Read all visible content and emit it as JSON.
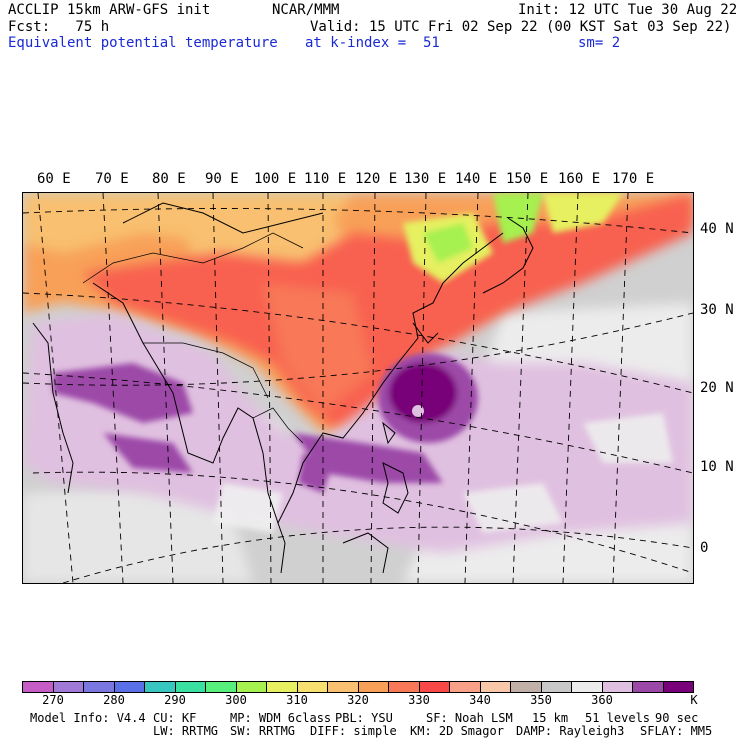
{
  "header": {
    "line1_left": "ACCLIP 15km ARW-GFS init",
    "line1_mid": "NCAR/MMM",
    "line1_right": "Init: 12 UTC Tue 30 Aug 22",
    "line2_left": "Fcst:   75 h",
    "line2_right": "Valid: 15 UTC Fri 02 Sep 22 (00 KST Sat 03 Sep 22)",
    "line3_left": "Equivalent potential temperature",
    "line3_mid": "at k-index =  51",
    "line3_right": "sm= 2"
  },
  "map": {
    "lon_labels": [
      "60 E",
      "70 E",
      "80 E",
      "90 E",
      "100 E",
      "110 E",
      "120 E",
      "130 E",
      "140 E",
      "150 E",
      "160 E",
      "170 E"
    ],
    "lat_labels": [
      "40 N",
      "30 N",
      "20 N",
      "10 N",
      "0"
    ]
  },
  "colorbar": {
    "colors": [
      "#c65cc6",
      "#a07ad6",
      "#7a78e0",
      "#5a70e8",
      "#38c6c0",
      "#3ae0a0",
      "#58f07c",
      "#a6f050",
      "#e6f060",
      "#f8e070",
      "#f8c070",
      "#f8a058",
      "#f87858",
      "#f84848",
      "#f8a088",
      "#f8c8a8",
      "#c0b0a8",
      "#c8c8c8",
      "#ececec",
      "#e0c0e0",
      "#9c48a8",
      "#780078"
    ],
    "tick_labels": [
      "270",
      "280",
      "290",
      "300",
      "310",
      "320",
      "330",
      "340",
      "350",
      "360",
      "K"
    ]
  },
  "footer": {
    "line1": [
      "Model Info: V4.4",
      "CU: KF",
      "MP: WDM 6class",
      "PBL: YSU",
      "SF: Noah LSM",
      "15 km",
      "51 levels",
      "90 sec"
    ],
    "line2": [
      "LW: RRTMG",
      "SW: RRTMG",
      "DIFF: simple",
      "KM: 2D Smagor",
      "DAMP: Rayleigh3",
      "SFLAY: MM5"
    ]
  }
}
